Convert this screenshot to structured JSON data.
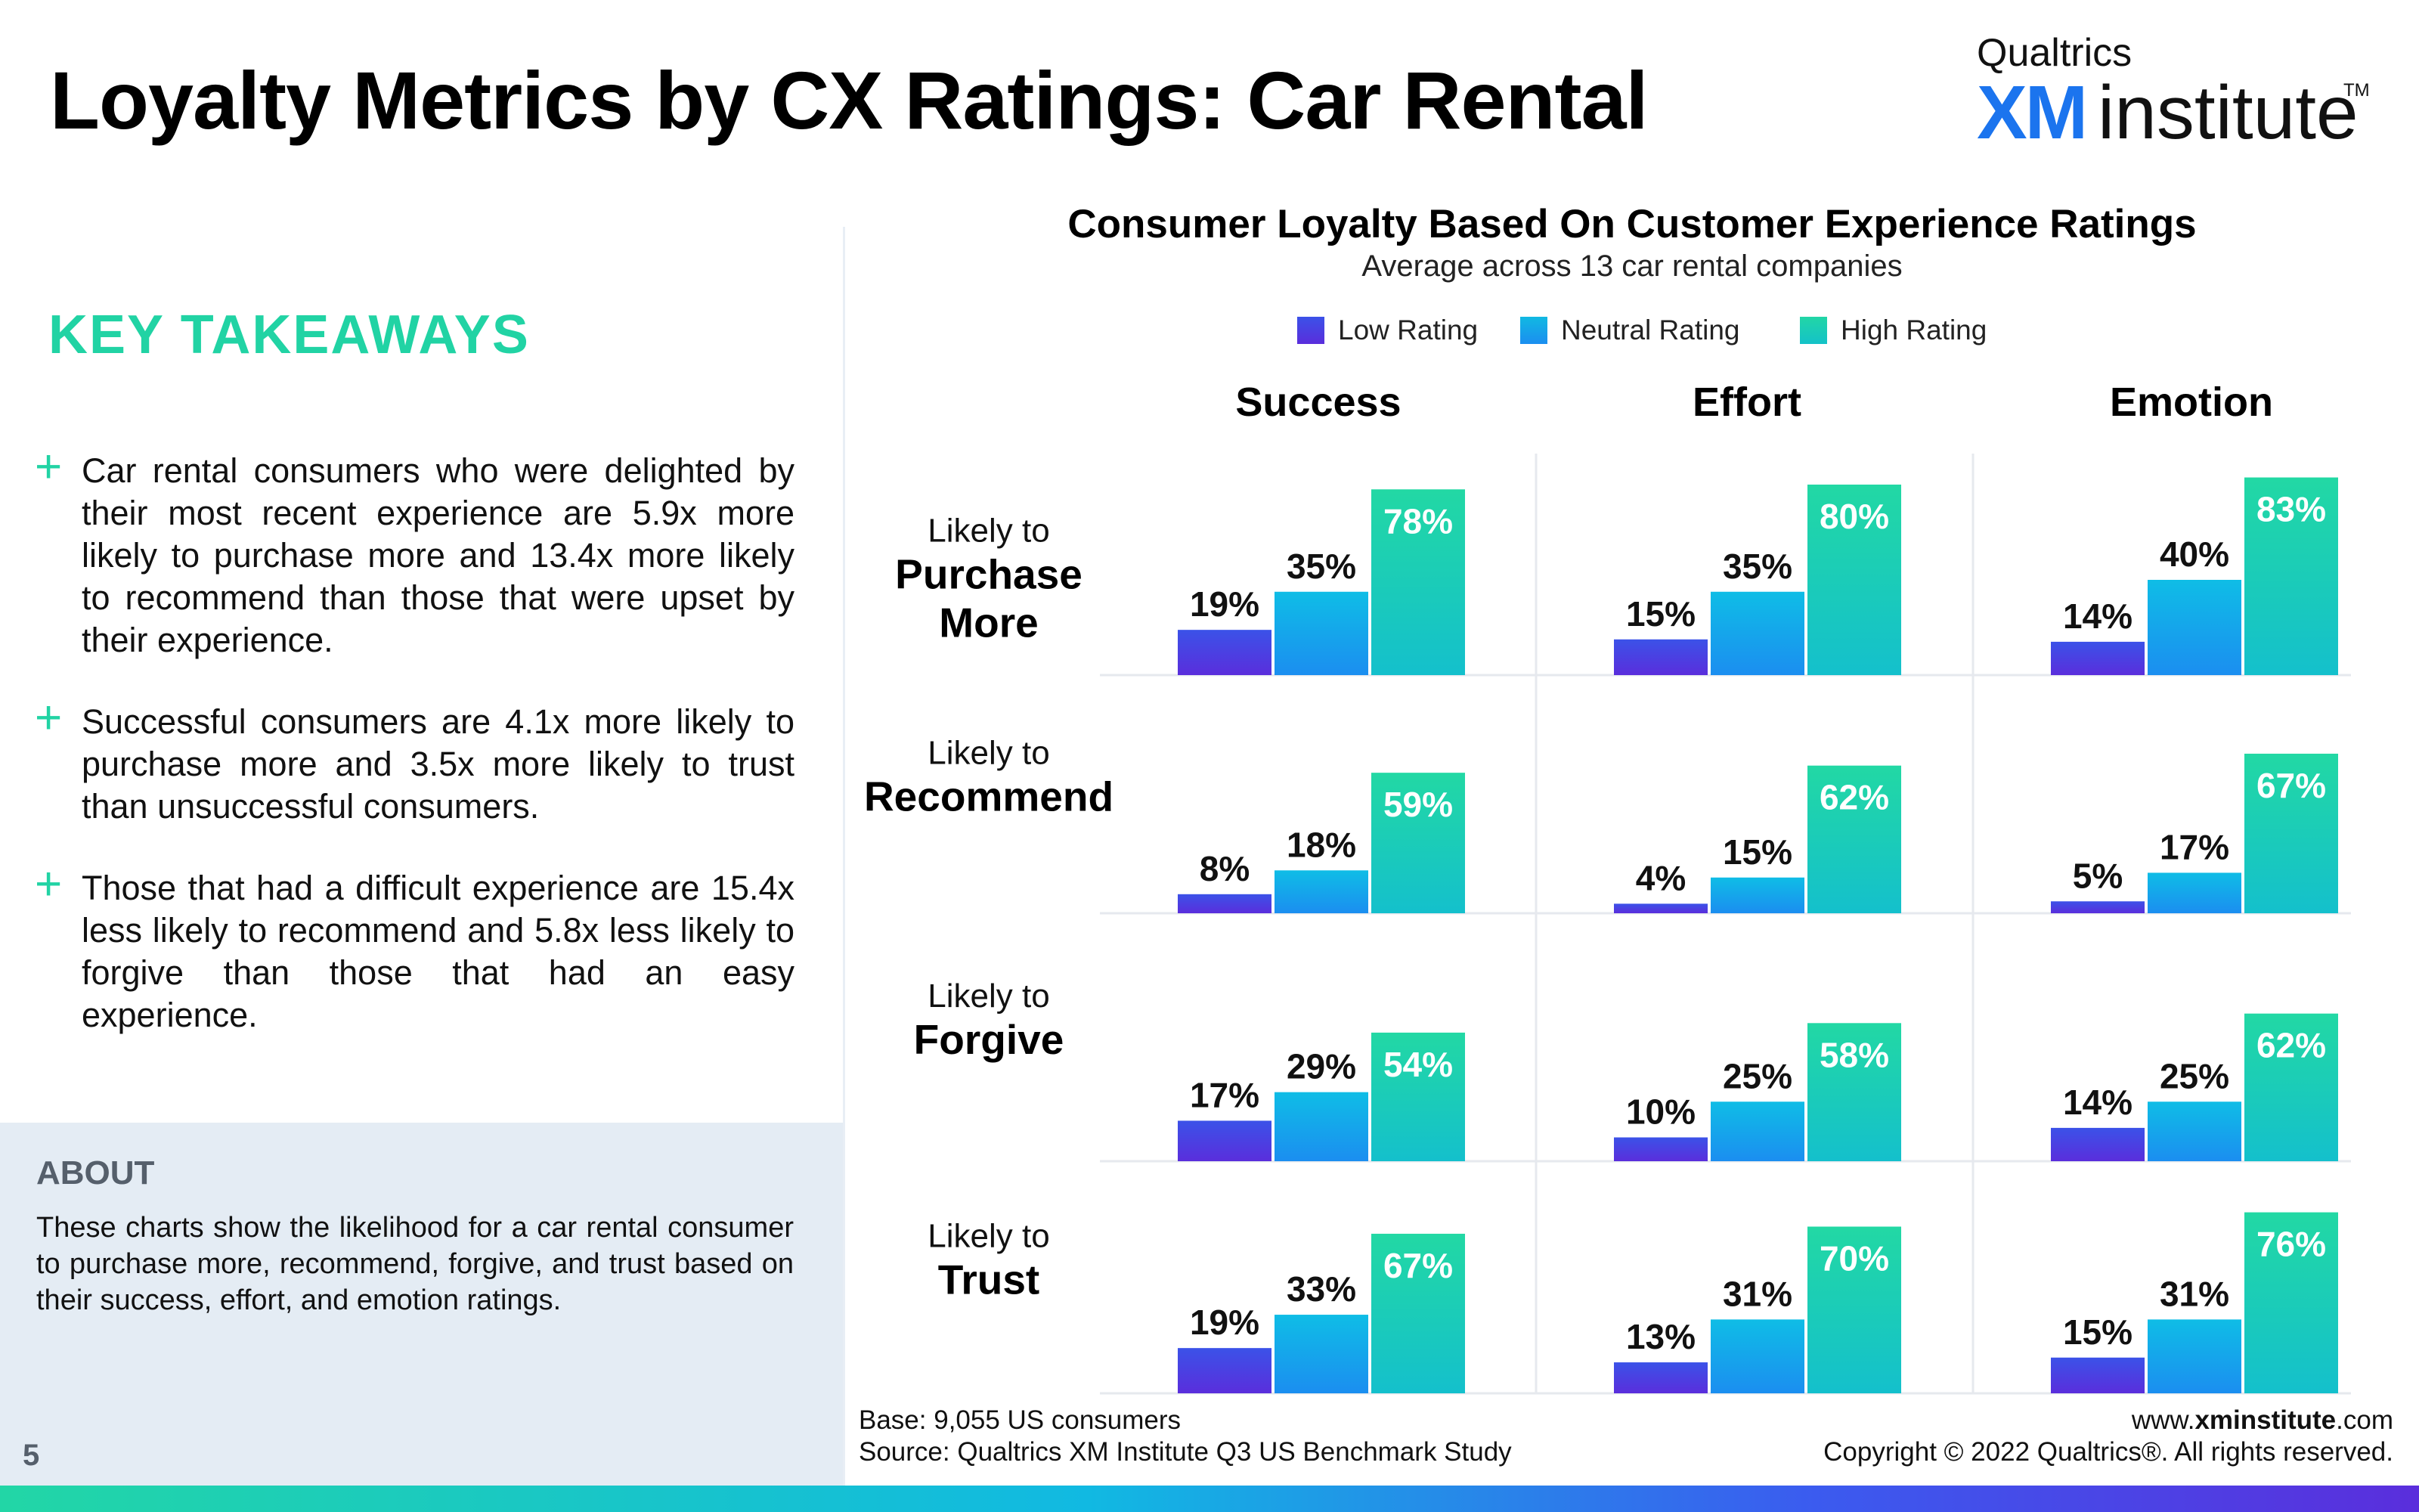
{
  "page": {
    "title": "Loyalty Metrics by CX Ratings: Car Rental",
    "page_number": "5"
  },
  "logo": {
    "top_text": "Qualtrics",
    "mark_text": "XM",
    "rest_text": "institute",
    "tm": "TM"
  },
  "takeaways": {
    "heading": "KEY TAKEAWAYS",
    "items": [
      {
        "symbol": "+",
        "text": "Car rental consumers who were delighted by their most recent experience are 5.9x more likely to purchase more and 13.4x more likely to recommend than those that were upset by their experience."
      },
      {
        "symbol": "+",
        "text": "Successful consumers are 4.1x more likely to purchase more and 3.5x more likely to trust than unsuccessful consumers."
      },
      {
        "symbol": "+",
        "text": "Those that had a difficult experience are 15.4x less likely to recommend and 5.8x less likely to forgive than those that had an easy experience."
      }
    ]
  },
  "about": {
    "heading": "ABOUT",
    "text": "These charts show the likelihood for a car rental consumer to purchase more, recommend, forgive, and trust based on their success, effort, and emotion ratings."
  },
  "footer": {
    "base": "Base: 9,055 US consumers",
    "source": "Source: Qualtrics XM Institute Q3 US Benchmark Study",
    "url_prefix": "www.",
    "url_bold": "xminstitute",
    "url_suffix": ".com",
    "copyright": "Copyright © 2022 Qualtrics®. All rights reserved."
  },
  "colors": {
    "accent_green": "#21d3a4",
    "low_rating": "#4a34e0",
    "neutral_rating": "#0ea8ec",
    "high_rating": "#22d6a6"
  },
  "chart_data": {
    "type": "bar",
    "title": "Consumer Loyalty Based On Customer Experience Ratings",
    "subtitle": "Average across 13 car rental companies",
    "legend": [
      "Low Rating",
      "Neutral Rating",
      "High Rating"
    ],
    "legend_position": "top",
    "columns": [
      "Success",
      "Effort",
      "Emotion"
    ],
    "rows": [
      {
        "prefix": "Likely to",
        "label": "Purchase More"
      },
      {
        "prefix": "Likely to",
        "label": "Recommend"
      },
      {
        "prefix": "Likely to",
        "label": "Forgive"
      },
      {
        "prefix": "Likely to",
        "label": "Trust"
      }
    ],
    "unit": "%",
    "values": [
      [
        [
          19,
          35,
          78
        ],
        [
          15,
          35,
          80
        ],
        [
          14,
          40,
          83
        ]
      ],
      [
        [
          8,
          18,
          59
        ],
        [
          4,
          15,
          62
        ],
        [
          5,
          17,
          67
        ]
      ],
      [
        [
          17,
          29,
          54
        ],
        [
          10,
          25,
          58
        ],
        [
          14,
          25,
          62
        ]
      ],
      [
        [
          19,
          33,
          67
        ],
        [
          13,
          31,
          70
        ],
        [
          15,
          31,
          76
        ]
      ]
    ],
    "ylim": [
      0,
      100
    ],
    "grid": false
  }
}
